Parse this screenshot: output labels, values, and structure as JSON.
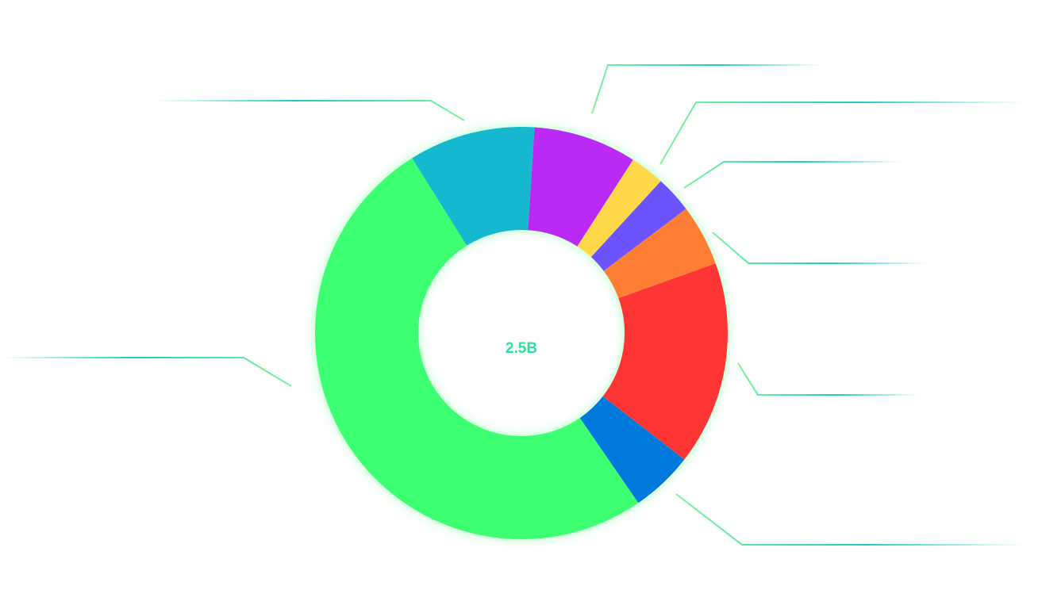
{
  "chart_data": {
    "type": "pie",
    "center_label": "2.5B",
    "values": [
      9.9,
      8.1,
      2.7,
      2.9,
      4.8,
      16.0,
      4.9,
      50.7
    ],
    "colors": [
      "#17b8cf",
      "#bb2af5",
      "#ffd84a",
      "#6c52ff",
      "#ff7d36",
      "#ff3434",
      "#0079dc",
      "#3dff72"
    ]
  }
}
